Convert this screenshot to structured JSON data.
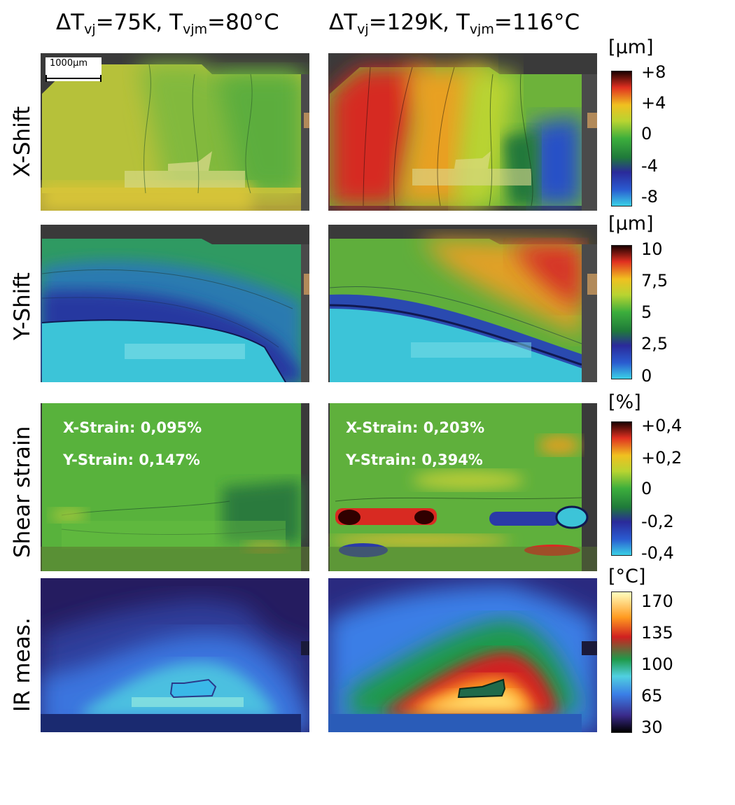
{
  "columns": [
    {
      "delta_label": "ΔT",
      "delta_sub": "vj",
      "delta_value": "=75K, ",
      "mean_label": "T",
      "mean_sub": "vjm",
      "mean_value": "=80°C"
    },
    {
      "delta_label": "ΔT",
      "delta_sub": "vj",
      "delta_value": "=129K, ",
      "mean_label": "T",
      "mean_sub": "vjm",
      "mean_value": "=116°C"
    }
  ],
  "rows": [
    {
      "label": "X-Shift",
      "unit": "[µm]",
      "ticks": [
        "+8",
        "+4",
        "0",
        "-4",
        "-8"
      ]
    },
    {
      "label": "Y-Shift",
      "unit": "[µm]",
      "ticks": [
        "10",
        "7,5",
        "5",
        "2,5",
        "0"
      ]
    },
    {
      "label": "Shear strain",
      "unit": "[%]",
      "ticks": [
        "+0,4",
        "+0,2",
        "0",
        "-0,2",
        "-0,4"
      ]
    },
    {
      "label": "IR meas.",
      "unit": "[°C]",
      "ticks": [
        "170",
        "135",
        "100",
        "65",
        "30"
      ]
    }
  ],
  "scale_bar": "1000µm",
  "strain_values": {
    "left": {
      "x": "X-Strain: 0,095%",
      "y": "Y-Strain: 0,147%"
    },
    "right": {
      "x": "X-Strain: 0,203%",
      "y": "Y-Strain: 0,394%"
    }
  },
  "colormaps": {
    "jet": [
      "#3ad0e6",
      "#2a5bd0",
      "#2a2a9a",
      "#1f7a3a",
      "#3cae3c",
      "#b8d431",
      "#f0c020",
      "#e03020",
      "#1a0000"
    ],
    "thermal": [
      "#000000",
      "#3a2a8a",
      "#3a7ee6",
      "#50d0e0",
      "#1f9a4a",
      "#d02020",
      "#ff9a20",
      "#ffffc0"
    ]
  }
}
